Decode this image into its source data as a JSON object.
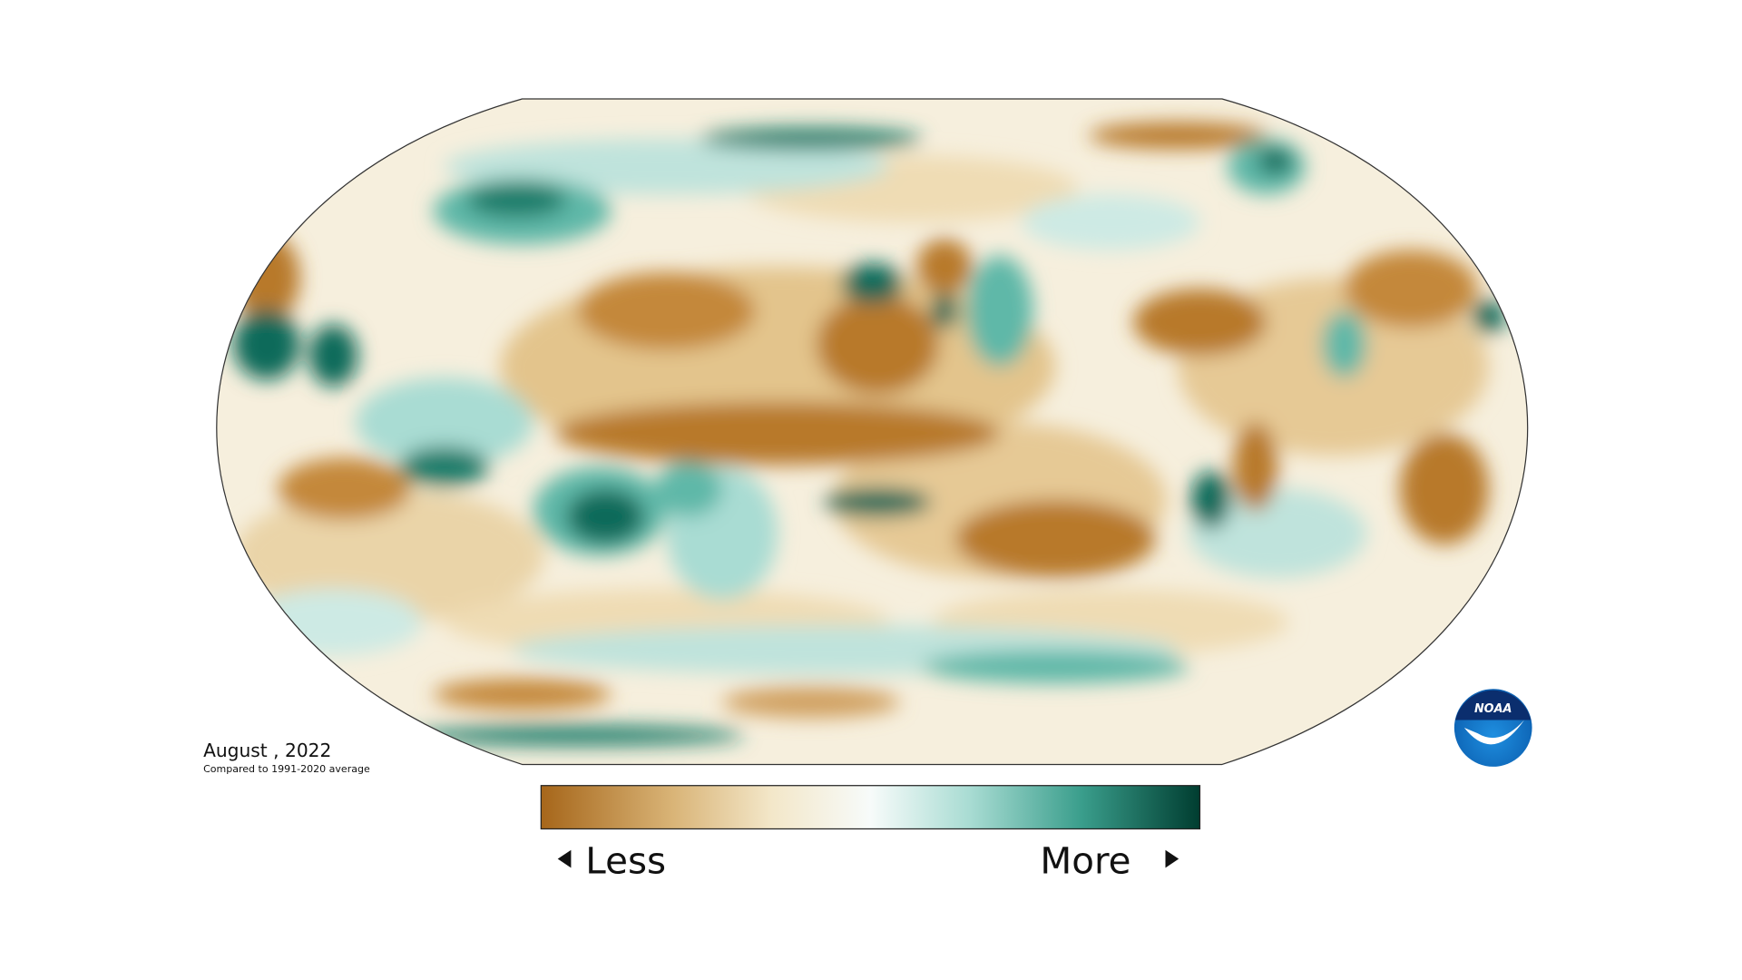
{
  "map": {
    "date": "August , 2022",
    "baseline": "Compared to 1991-2020 average"
  },
  "legend": {
    "less": "Less",
    "more": "More"
  },
  "logo": {
    "text": "NOAA"
  }
}
